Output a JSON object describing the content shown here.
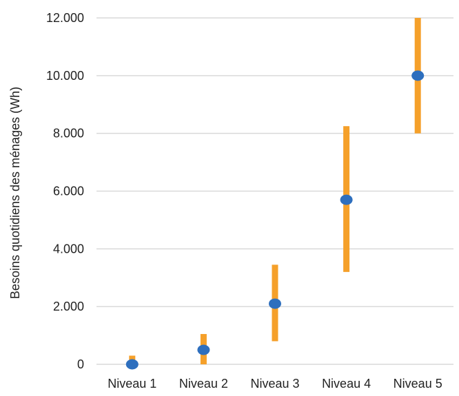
{
  "chart_data": {
    "type": "scatter",
    "title": "",
    "xlabel": "",
    "ylabel": "Besoins quotidiens des ménages (Wh)",
    "categories": [
      "Niveau 1",
      "Niveau 2",
      "Niveau 3",
      "Niveau 4",
      "Niveau 5"
    ],
    "y_ticks": [
      "0",
      "2.000",
      "4.000",
      "6.000",
      "8.000",
      "10.000",
      "12.000"
    ],
    "y_tick_values": [
      0,
      2000,
      4000,
      6000,
      8000,
      10000,
      12000
    ],
    "ylim": [
      0,
      12000
    ],
    "grid": true,
    "legend": "none",
    "series": [
      {
        "kind": "range",
        "low": [
          0,
          0,
          800,
          3200,
          8000
        ],
        "high": [
          300,
          1050,
          3450,
          8250,
          12000
        ],
        "color": "#F5A02A"
      },
      {
        "kind": "point",
        "values": [
          0,
          500,
          2100,
          5700,
          10000
        ],
        "color": "#2E6FBE"
      }
    ]
  }
}
